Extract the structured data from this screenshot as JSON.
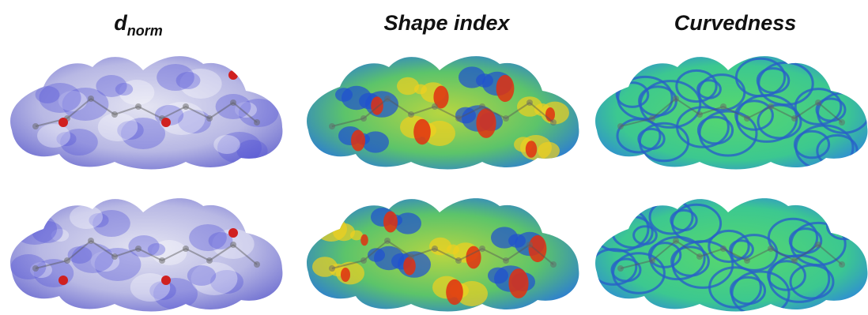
{
  "panels": [
    {
      "title": "d",
      "subscript": "norm"
    },
    {
      "title": "Shape index"
    },
    {
      "title": "Curvedness"
    }
  ]
}
